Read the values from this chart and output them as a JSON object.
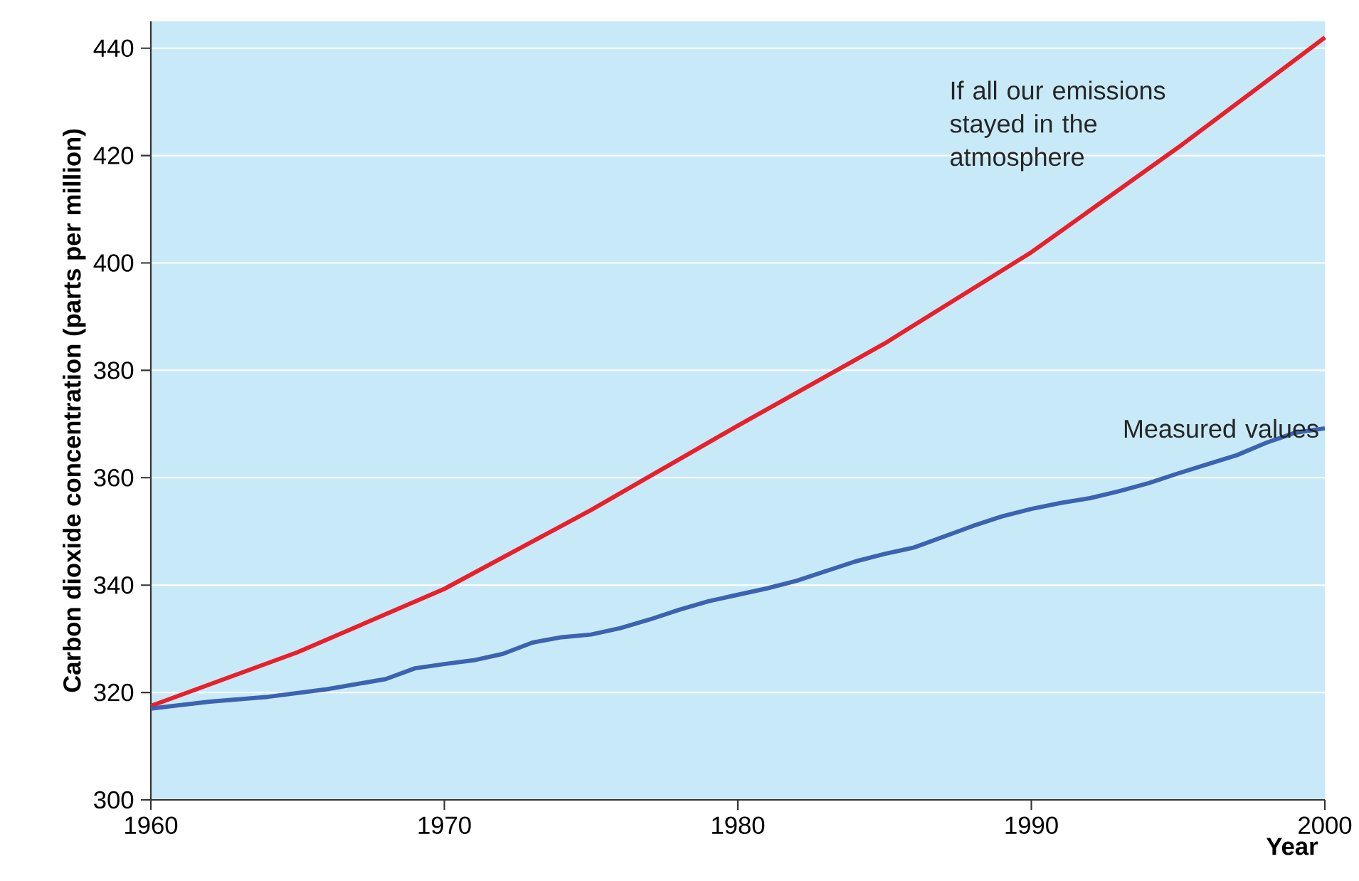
{
  "chart_data": {
    "type": "line",
    "xlabel": "Year",
    "ylabel": "Carbon dioxide concentration (parts per million)",
    "xlim": [
      1960,
      2000
    ],
    "xticks": [
      1960,
      1970,
      1980,
      1990,
      2000
    ],
    "ylim": [
      300,
      445
    ],
    "yticks": [
      300,
      320,
      340,
      360,
      380,
      400,
      420,
      440
    ],
    "grid": "y",
    "legend": false,
    "marker": "none",
    "line_style": "solid",
    "series": [
      {
        "name": "If all our emissions stayed in the atmosphere",
        "color": "#e8202a",
        "x": [
          1960,
          1965,
          1970,
          1975,
          1980,
          1985,
          1990,
          1995,
          2000
        ],
        "values": [
          317.5,
          327.5,
          339.3,
          354,
          369.7,
          385,
          402,
          421.5,
          442
        ]
      },
      {
        "name": "Measured values",
        "color": "#3b63b0",
        "x": [
          1960,
          1962,
          1964,
          1966,
          1968,
          1969,
          1970,
          1971,
          1972,
          1973,
          1974,
          1975,
          1976,
          1977,
          1978,
          1979,
          1980,
          1981,
          1982,
          1983,
          1984,
          1985,
          1986,
          1987,
          1988,
          1989,
          1990,
          1991,
          1992,
          1993,
          1994,
          1995,
          1996,
          1997,
          1998,
          1999,
          2000
        ],
        "values": [
          317,
          318.3,
          319.2,
          320.6,
          322.5,
          324.5,
          325.3,
          326,
          327.2,
          329.3,
          330.3,
          330.8,
          332,
          333.6,
          335.4,
          337,
          338.2,
          339.4,
          340.8,
          342.6,
          344.4,
          345.8,
          347,
          349,
          351,
          352.8,
          354.2,
          355.3,
          356.2,
          357.5,
          359,
          360.8,
          362.5,
          364.2,
          366.5,
          368.4,
          369.2
        ]
      }
    ]
  }
}
